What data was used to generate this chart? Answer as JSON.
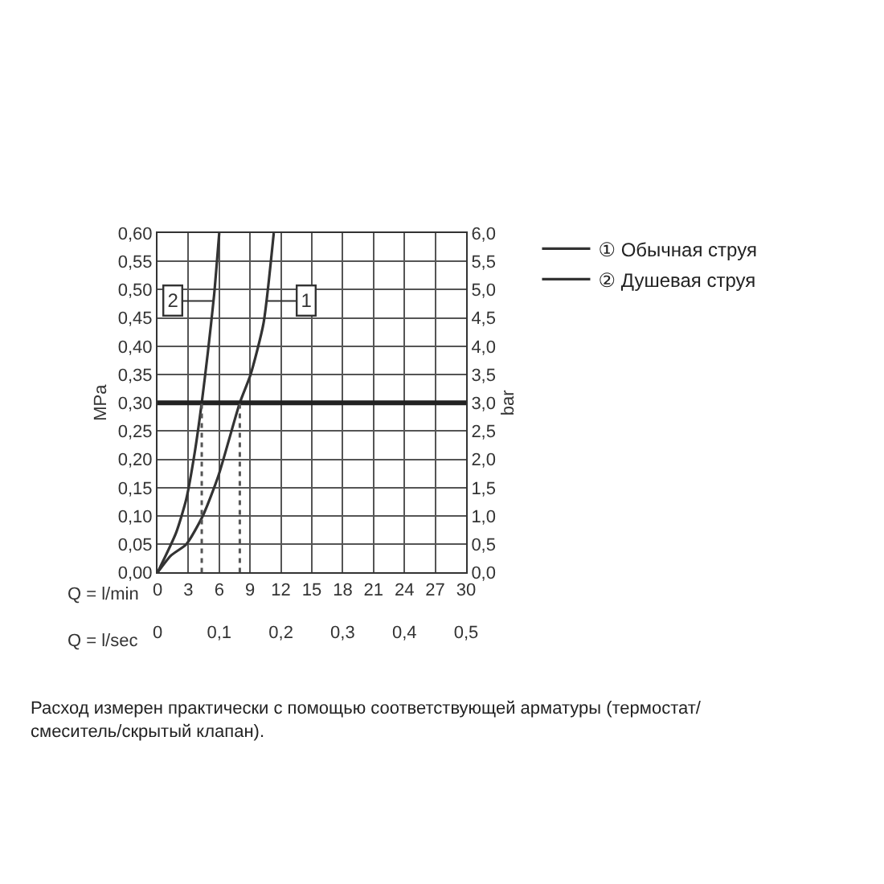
{
  "chart_data": {
    "type": "line",
    "xlabel": "Q = l/min",
    "x2label": "Q = l/sec",
    "ylabel": "MPa",
    "y2label": "bar",
    "xlim": [
      0,
      30
    ],
    "xticks": [
      0,
      3,
      6,
      9,
      12,
      15,
      18,
      21,
      24,
      27,
      30
    ],
    "x2lim": [
      0,
      0.5
    ],
    "x2ticks": [
      0,
      {
        "value": 0.1,
        "label": "0,1"
      },
      {
        "value": 0.2,
        "label": "0,2"
      },
      {
        "value": 0.3,
        "label": "0,3"
      },
      {
        "value": 0.4,
        "label": "0,4"
      },
      {
        "value": 0.5,
        "label": "0,5"
      }
    ],
    "ylim": [
      0,
      0.6
    ],
    "yticks": [
      {
        "value": 0,
        "label": "0,00"
      },
      {
        "value": 0.05,
        "label": "0,05"
      },
      {
        "value": 0.1,
        "label": "0,10"
      },
      {
        "value": 0.15,
        "label": "0,15"
      },
      {
        "value": 0.2,
        "label": "0,20"
      },
      {
        "value": 0.25,
        "label": "0,25"
      },
      {
        "value": 0.3,
        "label": "0,30"
      },
      {
        "value": 0.35,
        "label": "0,35"
      },
      {
        "value": 0.4,
        "label": "0,40"
      },
      {
        "value": 0.45,
        "label": "0,45"
      },
      {
        "value": 0.5,
        "label": "0,50"
      },
      {
        "value": 0.55,
        "label": "0,55"
      },
      {
        "value": 0.6,
        "label": "0,60"
      }
    ],
    "y2lim": [
      0,
      6
    ],
    "y2ticks": [
      {
        "value": 0,
        "label": "0,0"
      },
      {
        "value": 0.5,
        "label": "0,5"
      },
      {
        "value": 1,
        "label": "1,0"
      },
      {
        "value": 1.5,
        "label": "1,5"
      },
      {
        "value": 2,
        "label": "2,0"
      },
      {
        "value": 2.5,
        "label": "2,5"
      },
      {
        "value": 3,
        "label": "3,0"
      },
      {
        "value": 3.5,
        "label": "3,5"
      },
      {
        "value": 4,
        "label": "4,0"
      },
      {
        "value": 4.5,
        "label": "4,5"
      },
      {
        "value": 5,
        "label": "5,0"
      },
      {
        "value": 5.5,
        "label": "5,5"
      },
      {
        "value": 6,
        "label": "6,0"
      }
    ],
    "grid": true,
    "legend": "right",
    "line_style": "solid",
    "series": [
      {
        "name": "① Обычная струя",
        "color": "#333333",
        "x": [
          0,
          1.3,
          2.8,
          4.4,
          5.9,
          8.0,
          9.05,
          10.3,
          11.3
        ],
        "values": [
          0,
          0.03,
          0.05,
          0.1,
          0.17,
          0.3,
          0.35,
          0.44,
          0.6
        ]
      },
      {
        "name": "② Душевая струя",
        "color": "#333333",
        "x": [
          0,
          1.8,
          2.8,
          3.6,
          4.3,
          4.9,
          5.5,
          6.0
        ],
        "values": [
          0,
          0.07,
          0.13,
          0.21,
          0.3,
          0.39,
          0.49,
          0.6
        ]
      }
    ],
    "ref_lines": [
      {
        "axis": "y",
        "value": 0.3,
        "color": "#222222",
        "line_style": "solid"
      },
      {
        "axis": "x",
        "value": 4.3,
        "color": "#555555",
        "line_style": "dotted"
      },
      {
        "axis": "x",
        "value": 8.0,
        "color": "#555555",
        "line_style": "dotted"
      }
    ],
    "annotations": [
      {
        "text": "1",
        "x": 10.6,
        "y": 0.48
      },
      {
        "text": "2",
        "x": 5.4,
        "y": 0.48
      },
      "Расход измерен практически с помощью соответствующей арматуры (термостат/ смеситель/скрытый клапан)."
    ]
  }
}
